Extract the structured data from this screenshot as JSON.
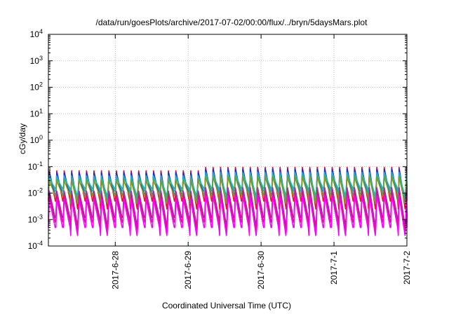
{
  "chart_data": {
    "type": "line",
    "title": "/data/run/goesPlots/archive/2017-07-02/00:00/flux/../bryn/5daysMars.plot",
    "xlabel": "Coordinated Universal Time (UTC)",
    "ylabel": "cGy/day",
    "yscale": "log",
    "ylim": [
      0.0001,
      10000
    ],
    "yticks": [
      {
        "mant": "10",
        "exp": "-4"
      },
      {
        "mant": "10",
        "exp": "-3"
      },
      {
        "mant": "10",
        "exp": "-2"
      },
      {
        "mant": "10",
        "exp": "-1"
      },
      {
        "mant": "10",
        "exp": "0"
      },
      {
        "mant": "10",
        "exp": "1"
      },
      {
        "mant": "10",
        "exp": "2"
      },
      {
        "mant": "10",
        "exp": "3"
      },
      {
        "mant": "10",
        "exp": "4"
      }
    ],
    "xlim": [
      "2017-06-27T02:00",
      "2017-07-02T00:00"
    ],
    "xticks": [
      "2017-6-28",
      "2017-6-29",
      "2017-6-30",
      "2017-7-1",
      "2017-7-2"
    ],
    "grid": true,
    "cycle_hours": 2.45,
    "series": [
      {
        "color": "#e8151b",
        "values": [
          0.07,
          0.005
        ]
      },
      {
        "color": "#1b2fc8",
        "values": [
          0.06,
          0.008
        ]
      },
      {
        "color": "#27a7e0",
        "values": [
          0.045,
          0.012
        ]
      },
      {
        "color": "#1fb89b",
        "values": [
          0.035,
          0.015
        ]
      },
      {
        "color": "#7a9a2a",
        "values": [
          0.03,
          0.008
        ]
      },
      {
        "color": "#9b2fae",
        "values": [
          0.012,
          0.0012
        ]
      },
      {
        "color": "#d6157a",
        "values": [
          0.008,
          0.0008
        ]
      },
      {
        "color": "#ff00ff",
        "values": [
          0.006,
          0.0005
        ]
      }
    ]
  }
}
